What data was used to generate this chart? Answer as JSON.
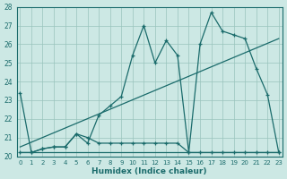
{
  "xlabel": "Humidex (Indice chaleur)",
  "bg_color": "#cce8e4",
  "grid_color": "#99c4bc",
  "line_color": "#1a6b6b",
  "xlim_min": -0.3,
  "xlim_max": 23.3,
  "ylim_min": 20,
  "ylim_max": 28,
  "xticks": [
    0,
    1,
    2,
    3,
    4,
    5,
    6,
    7,
    8,
    9,
    10,
    11,
    12,
    13,
    14,
    15,
    16,
    17,
    18,
    19,
    20,
    21,
    22,
    23
  ],
  "yticks": [
    20,
    21,
    22,
    23,
    24,
    25,
    26,
    27,
    28
  ],
  "series1_x": [
    0,
    1,
    2,
    3,
    4,
    5,
    6,
    7,
    8,
    9,
    10,
    11,
    12,
    13,
    14,
    15,
    16,
    17,
    18,
    19,
    20,
    21,
    22,
    23
  ],
  "series1_y": [
    23.4,
    20.2,
    20.4,
    20.5,
    20.5,
    21.2,
    20.7,
    22.2,
    22.7,
    23.2,
    25.4,
    27.0,
    25.0,
    26.2,
    25.4,
    20.2,
    26.0,
    27.7,
    26.7,
    26.5,
    26.3,
    24.7,
    23.3,
    20.2
  ],
  "series2_x": [
    0,
    1,
    2,
    3,
    4,
    5,
    6,
    7,
    8,
    9,
    10,
    11,
    12,
    13,
    14,
    15,
    16,
    17,
    18,
    19,
    20,
    21,
    22,
    23
  ],
  "series2_y": [
    20.2,
    20.2,
    20.4,
    20.5,
    20.5,
    21.2,
    21.0,
    20.7,
    20.7,
    20.7,
    20.7,
    20.7,
    20.7,
    20.7,
    20.7,
    20.2,
    20.2,
    20.2,
    20.2,
    20.2,
    20.2,
    20.2,
    20.2,
    20.2
  ],
  "series3_x": [
    0,
    20,
    20,
    23
  ],
  "series3_y": [
    20.2,
    20.2,
    20.2,
    20.2
  ],
  "series4_x": [
    0,
    23
  ],
  "series4_y": [
    20.5,
    26.3
  ]
}
